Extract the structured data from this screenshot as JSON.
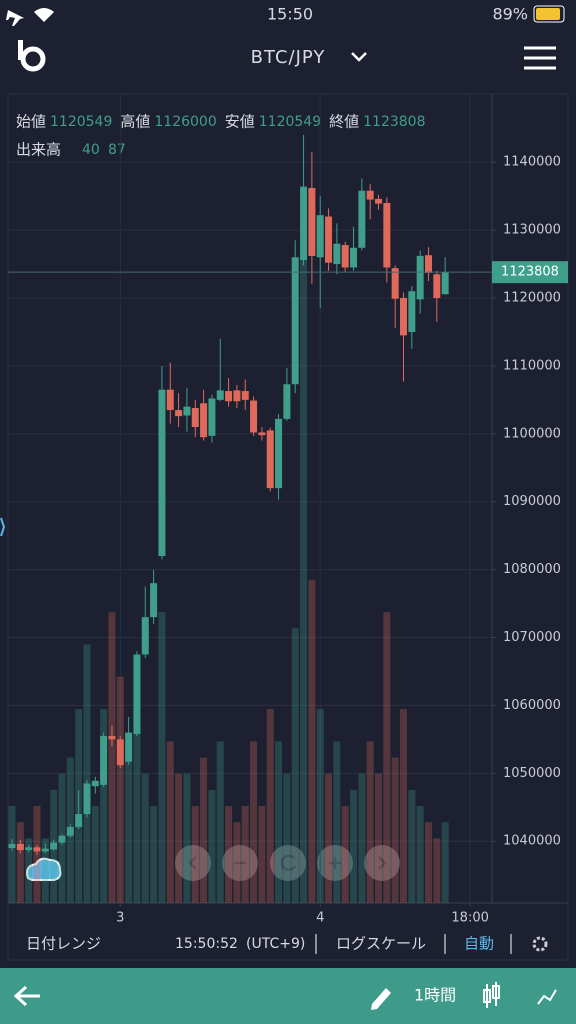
{
  "status_bar": {
    "time": "15:50",
    "battery": "89%"
  },
  "header": {
    "title": "BTC/JPY"
  },
  "info": {
    "labels": [
      "始値",
      "高値",
      "安値",
      "終値"
    ],
    "values": [
      1120549,
      1126000,
      1120549,
      1123808
    ],
    "volume_label": "出来高",
    "volume_values": [
      40,
      87
    ]
  },
  "chart_data": {
    "type": "candlestick",
    "categories": [
      null,
      null,
      null,
      null,
      null,
      null,
      null,
      null,
      null,
      null,
      null,
      null,
      null,
      null,
      null,
      null,
      null,
      null,
      null,
      null,
      null,
      null,
      null,
      null,
      null,
      null,
      null,
      null,
      null,
      null,
      null,
      null,
      null,
      null,
      null,
      null,
      null,
      null,
      null,
      null,
      null,
      null,
      null,
      null,
      null,
      null,
      null,
      null,
      null,
      null,
      null,
      null,
      null
    ],
    "open": [
      1039000,
      1039600,
      1038700,
      1039100,
      1038500,
      1038800,
      1039800,
      1040800,
      1042100,
      1044000,
      1048100,
      1048300,
      1055500,
      1055000,
      1051700,
      1055800,
      1067500,
      1073000,
      1082000,
      1106500,
      1103500,
      1102700,
      1103800,
      1104500,
      1099700,
      1105000,
      1106300,
      1106400,
      1106300,
      1104900,
      1100200,
      1100500,
      1092000,
      1102200,
      1107300,
      1125600,
      1136200,
      1126000,
      1132000,
      1125000,
      1127800,
      1124500,
      1127400,
      1135800,
      1134600,
      1134000,
      1124400,
      1120000,
      1115000,
      1119800,
      1126300,
      1123500,
      1120549
    ],
    "high": [
      1040300,
      1040200,
      1039500,
      1039400,
      1039700,
      1040200,
      1041000,
      1042500,
      1047500,
      1049000,
      1049500,
      1056000,
      1057000,
      1055500,
      1058300,
      1068000,
      1077500,
      1080000,
      1110000,
      1110500,
      1106000,
      1106800,
      1105000,
      1106500,
      1105800,
      1114000,
      1108200,
      1107200,
      1108000,
      1105500,
      1101000,
      1100900,
      1102900,
      1109700,
      1128500,
      1144000,
      1141500,
      1135000,
      1133200,
      1131000,
      1128300,
      1130500,
      1137600,
      1136800,
      1135200,
      1134800,
      1124800,
      1120800,
      1121800,
      1127000,
      1127500,
      1124000,
      1126000
    ],
    "low": [
      1038600,
      1038200,
      1038400,
      1038000,
      1038200,
      1038600,
      1039500,
      1040500,
      1041800,
      1043500,
      1047000,
      1048000,
      1054000,
      1050800,
      1051300,
      1055500,
      1067000,
      1072000,
      1081500,
      1101500,
      1101000,
      1100300,
      1099500,
      1099000,
      1098700,
      1104800,
      1104000,
      1103800,
      1103500,
      1099700,
      1099000,
      1091500,
      1090300,
      1101900,
      1106000,
      1124800,
      1122100,
      1118500,
      1124000,
      1123500,
      1123800,
      1124000,
      1127000,
      1131600,
      1133000,
      1122300,
      1115600,
      1107700,
      1112500,
      1117700,
      1122500,
      1116500,
      1120549
    ],
    "close": [
      1039600,
      1038700,
      1039100,
      1038500,
      1038900,
      1039800,
      1040800,
      1042100,
      1044000,
      1048500,
      1048900,
      1055500,
      1055000,
      1051200,
      1056000,
      1067500,
      1073000,
      1078000,
      1106500,
      1103500,
      1102600,
      1104000,
      1101000,
      1099500,
      1105200,
      1106400,
      1104800,
      1104800,
      1105000,
      1100200,
      1099800,
      1092000,
      1102200,
      1107300,
      1126000,
      1136400,
      1126200,
      1132200,
      1125200,
      1128000,
      1124500,
      1127400,
      1135800,
      1134500,
      1133900,
      1124500,
      1119900,
      1114500,
      1121000,
      1126200,
      1123700,
      1120000,
      1123808
    ],
    "volume": [
      30,
      25,
      20,
      30,
      20,
      35,
      40,
      45,
      60,
      80,
      30,
      60,
      90,
      70,
      50,
      60,
      40,
      30,
      90,
      50,
      40,
      40,
      30,
      45,
      35,
      50,
      30,
      25,
      30,
      50,
      30,
      60,
      50,
      40,
      85,
      200,
      100,
      60,
      40,
      50,
      30,
      35,
      40,
      50,
      40,
      90,
      45,
      60,
      35,
      30,
      25,
      20,
      25
    ],
    "last_price": 1123808,
    "xticks": [
      {
        "value": 13,
        "label": "3"
      },
      {
        "value": 37,
        "label": "4"
      },
      {
        "value": 55,
        "label": "18:00"
      }
    ],
    "ylim": [
      1030900,
      1149900
    ],
    "yticks": [
      1040000,
      1050000,
      1060000,
      1070000,
      1080000,
      1090000,
      1100000,
      1110000,
      1120000,
      1130000,
      1140000
    ],
    "y2lim": [
      0,
      250
    ],
    "up_color": "#3f9f8b",
    "down_color": "#df6a5c",
    "grid": true
  },
  "toolbar": {
    "range": "日付レンジ",
    "clock": "15:50:52",
    "timezone": "(UTC+9)",
    "log_scale": "ログスケール",
    "auto": "自動"
  },
  "footer": {
    "interval": "1時間"
  }
}
